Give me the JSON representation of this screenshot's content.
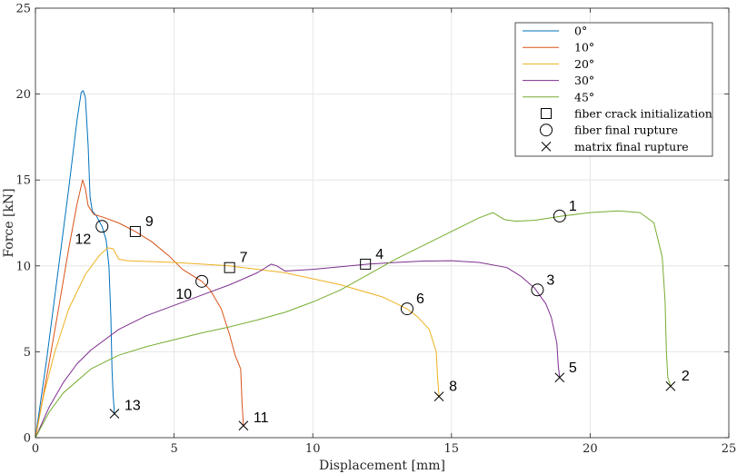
{
  "chart_data": {
    "type": "line",
    "xlabel": "Displacement [mm]",
    "ylabel": "Force [kN]",
    "xlim": [
      0,
      25
    ],
    "ylim": [
      0,
      25
    ],
    "xticks": [
      0,
      5,
      10,
      15,
      20,
      25
    ],
    "yticks": [
      0,
      5,
      10,
      15,
      20,
      25
    ],
    "grid": true,
    "legend_position": "top-right",
    "series": [
      {
        "name": "0°",
        "color": "#0072BD",
        "points": [
          [
            0,
            0
          ],
          [
            0.4,
            4.5
          ],
          [
            0.8,
            9.5
          ],
          [
            1.2,
            14.5
          ],
          [
            1.5,
            18.5
          ],
          [
            1.65,
            20.1
          ],
          [
            1.72,
            20.2
          ],
          [
            1.8,
            19.8
          ],
          [
            1.9,
            17
          ],
          [
            1.97,
            14
          ],
          [
            2.05,
            13.2
          ],
          [
            2.2,
            12.9
          ],
          [
            2.4,
            12.3
          ],
          [
            2.55,
            11.5
          ],
          [
            2.65,
            10
          ],
          [
            2.72,
            7
          ],
          [
            2.76,
            4
          ],
          [
            2.8,
            2.5
          ],
          [
            2.85,
            1.4
          ]
        ]
      },
      {
        "name": "10°",
        "color": "#D95319",
        "points": [
          [
            0,
            0
          ],
          [
            0.4,
            3.5
          ],
          [
            0.8,
            7.2
          ],
          [
            1.2,
            11
          ],
          [
            1.5,
            13.6
          ],
          [
            1.7,
            15
          ],
          [
            1.8,
            14.5
          ],
          [
            1.9,
            13.5
          ],
          [
            2.1,
            13
          ],
          [
            2.5,
            12.8
          ],
          [
            3,
            12.5
          ],
          [
            3.6,
            12
          ],
          [
            4.2,
            11.4
          ],
          [
            4.8,
            10.6
          ],
          [
            5.3,
            9.8
          ],
          [
            5.7,
            9.4
          ],
          [
            6,
            9.1
          ],
          [
            6.3,
            8.6
          ],
          [
            6.7,
            7.5
          ],
          [
            7,
            6
          ],
          [
            7.2,
            4.8
          ],
          [
            7.4,
            4
          ],
          [
            7.45,
            2
          ],
          [
            7.5,
            0.7
          ]
        ]
      },
      {
        "name": "20°",
        "color": "#EDB120",
        "points": [
          [
            0,
            0
          ],
          [
            0.3,
            2.5
          ],
          [
            0.7,
            5
          ],
          [
            1.2,
            7.5
          ],
          [
            1.8,
            9.5
          ],
          [
            2.3,
            10.6
          ],
          [
            2.6,
            11.05
          ],
          [
            2.8,
            11
          ],
          [
            3,
            10.4
          ],
          [
            3.3,
            10.3
          ],
          [
            5,
            10.2
          ],
          [
            7,
            10
          ],
          [
            9,
            9.6
          ],
          [
            11,
            8.9
          ],
          [
            12.5,
            8.2
          ],
          [
            13.4,
            7.5
          ],
          [
            13.8,
            7
          ],
          [
            14.2,
            6.3
          ],
          [
            14.45,
            5
          ],
          [
            14.5,
            3.5
          ],
          [
            14.55,
            2.4
          ]
        ]
      },
      {
        "name": "30°",
        "color": "#7E2F8E",
        "points": [
          [
            0,
            0
          ],
          [
            0.5,
            1.8
          ],
          [
            1,
            3.2
          ],
          [
            1.5,
            4.3
          ],
          [
            2,
            5.1
          ],
          [
            3,
            6.3
          ],
          [
            4,
            7.1
          ],
          [
            5,
            7.7
          ],
          [
            6,
            8.3
          ],
          [
            7,
            8.9
          ],
          [
            8,
            9.6
          ],
          [
            8.5,
            10.1
          ],
          [
            8.7,
            10
          ],
          [
            9,
            9.7
          ],
          [
            10,
            9.8
          ],
          [
            11,
            9.95
          ],
          [
            12,
            10.1
          ],
          [
            13,
            10.2
          ],
          [
            14,
            10.28
          ],
          [
            15,
            10.3
          ],
          [
            16,
            10.2
          ],
          [
            17,
            9.9
          ],
          [
            17.5,
            9.4
          ],
          [
            18,
            8.7
          ],
          [
            18.4,
            7.8
          ],
          [
            18.6,
            7
          ],
          [
            18.8,
            5.5
          ],
          [
            18.85,
            4.2
          ],
          [
            18.9,
            3.5
          ]
        ]
      },
      {
        "name": "45°",
        "color": "#77AC30",
        "points": [
          [
            0,
            0
          ],
          [
            0.5,
            1.5
          ],
          [
            1,
            2.6
          ],
          [
            2,
            4
          ],
          [
            3,
            4.8
          ],
          [
            4,
            5.3
          ],
          [
            5,
            5.7
          ],
          [
            6,
            6.1
          ],
          [
            7,
            6.45
          ],
          [
            8,
            6.85
          ],
          [
            9,
            7.3
          ],
          [
            10,
            7.9
          ],
          [
            11,
            8.6
          ],
          [
            12,
            9.5
          ],
          [
            13,
            10.4
          ],
          [
            14,
            11.2
          ],
          [
            15,
            12
          ],
          [
            16,
            12.8
          ],
          [
            16.5,
            13.1
          ],
          [
            16.9,
            12.7
          ],
          [
            17.3,
            12.6
          ],
          [
            18,
            12.65
          ],
          [
            19,
            12.9
          ],
          [
            20,
            13.1
          ],
          [
            21,
            13.2
          ],
          [
            21.8,
            13.1
          ],
          [
            22.3,
            12.5
          ],
          [
            22.6,
            10.5
          ],
          [
            22.7,
            8
          ],
          [
            22.75,
            5
          ],
          [
            22.8,
            3.5
          ],
          [
            22.9,
            3
          ]
        ]
      }
    ],
    "marker_types": [
      {
        "symbol": "square",
        "label": "fiber crack initialization"
      },
      {
        "symbol": "circle",
        "label": "fiber final rupture"
      },
      {
        "symbol": "cross",
        "label": "matrix final rupture"
      }
    ],
    "annotations": [
      {
        "id": "1",
        "x": 18.9,
        "y": 12.9,
        "marker": "circle"
      },
      {
        "id": "2",
        "x": 22.9,
        "y": 3.0,
        "marker": "cross"
      },
      {
        "id": "3",
        "x": 18.1,
        "y": 8.6,
        "marker": "circle"
      },
      {
        "id": "4",
        "x": 11.9,
        "y": 10.1,
        "marker": "square"
      },
      {
        "id": "5",
        "x": 18.9,
        "y": 3.5,
        "marker": "cross"
      },
      {
        "id": "6",
        "x": 13.4,
        "y": 7.5,
        "marker": "circle"
      },
      {
        "id": "7",
        "x": 7.0,
        "y": 9.9,
        "marker": "square"
      },
      {
        "id": "8",
        "x": 14.55,
        "y": 2.4,
        "marker": "cross"
      },
      {
        "id": "9",
        "x": 3.6,
        "y": 12.0,
        "marker": "square"
      },
      {
        "id": "10",
        "x": 6.0,
        "y": 9.1,
        "marker": "circle"
      },
      {
        "id": "11",
        "x": 7.5,
        "y": 0.7,
        "marker": "cross"
      },
      {
        "id": "12",
        "x": 2.4,
        "y": 12.3,
        "marker": "circle"
      },
      {
        "id": "13",
        "x": 2.85,
        "y": 1.4,
        "marker": "cross"
      }
    ]
  }
}
